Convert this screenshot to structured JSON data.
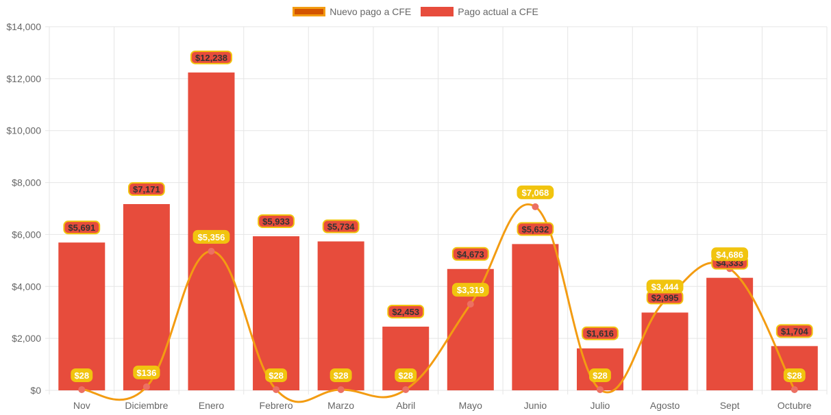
{
  "chart_data": {
    "type": "bar",
    "categories": [
      "Nov",
      "Diciembre",
      "Enero",
      "Febrero",
      "Marzo",
      "Abril",
      "Mayo",
      "Junio",
      "Julio",
      "Agosto",
      "Sept",
      "Octubre"
    ],
    "series": [
      {
        "name": "Pago actual a CFE",
        "type": "bar",
        "color": "#e74c3c",
        "values": [
          5691,
          7171,
          12238,
          5933,
          5734,
          2453,
          4673,
          5632,
          1616,
          2995,
          4333,
          1704
        ]
      },
      {
        "name": "Nuevo pago a CFE",
        "type": "line",
        "color": "#f39c12",
        "fill": "#d35400",
        "values": [
          28,
          136,
          5356,
          28,
          28,
          28,
          3319,
          7068,
          28,
          3444,
          4686,
          28
        ]
      }
    ],
    "ylim": [
      0,
      14000
    ],
    "yticks": [
      0,
      2000,
      4000,
      6000,
      8000,
      10000,
      12000,
      14000
    ],
    "grid": true,
    "legend": "top",
    "data_labels": true
  },
  "legend": {
    "line": "Nuevo pago a CFE",
    "bar": "Pago actual a CFE"
  }
}
